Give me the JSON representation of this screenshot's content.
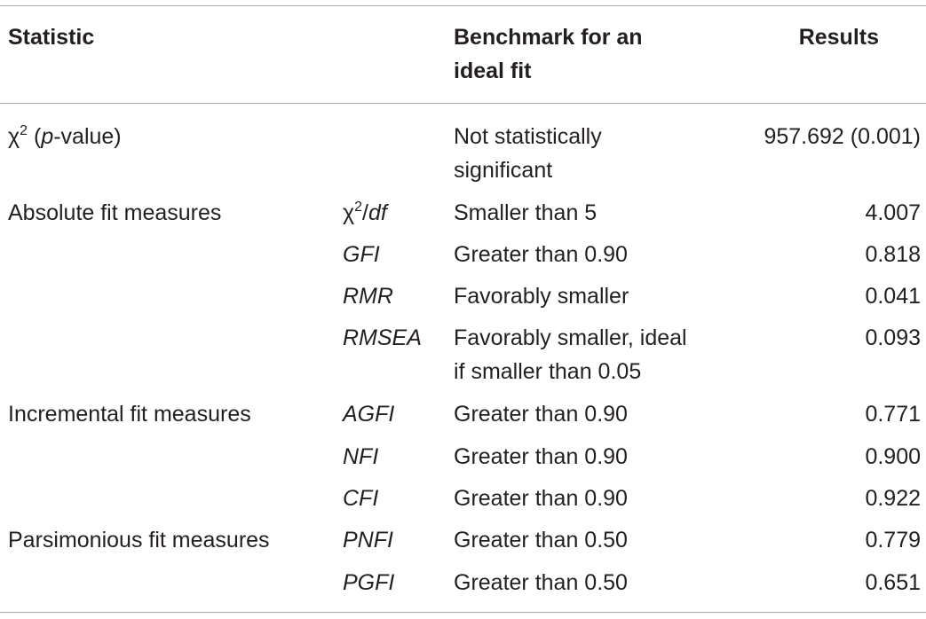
{
  "table": {
    "headers": {
      "statistic": "Statistic",
      "benchmark_line1": "Benchmark for an",
      "benchmark_line2": "ideal fit",
      "results": "Results"
    },
    "chi_row": {
      "symbol": "χ",
      "sup": "2",
      "open": " (",
      "p": "p",
      "rest": "-value)",
      "benchmark_line1": "Not statistically",
      "benchmark_line2": "significant",
      "result": "957.692 (0.001)"
    },
    "groups": {
      "absolute": "Absolute fit measures",
      "incremental": "Incremental fit measures",
      "parsimonious": "Parsimonious fit measures"
    },
    "chidf": {
      "symbol": "χ",
      "sup": "2",
      "slash": "/",
      "df": "df",
      "benchmark": "Smaller than 5",
      "result": "4.007"
    },
    "rows": {
      "gfi": {
        "measure": "GFI",
        "benchmark": "Greater than 0.90",
        "result": "0.818"
      },
      "rmr": {
        "measure": "RMR",
        "benchmark": "Favorably smaller",
        "result": "0.041"
      },
      "rmsea": {
        "measure": "RMSEA",
        "benchmark_line1": "Favorably smaller, ideal",
        "benchmark_line2": "if smaller than 0.05",
        "result": "0.093"
      },
      "agfi": {
        "measure": "AGFI",
        "benchmark": "Greater than 0.90",
        "result": "0.771"
      },
      "nfi": {
        "measure": "NFI",
        "benchmark": "Greater than 0.90",
        "result": "0.900"
      },
      "cfi": {
        "measure": "CFI",
        "benchmark": "Greater than 0.90",
        "result": "0.922"
      },
      "pnfi": {
        "measure": "PNFI",
        "benchmark": "Greater than 0.50",
        "result": "0.779"
      },
      "pgfi": {
        "measure": "PGFI",
        "benchmark": "Greater than 0.50",
        "result": "0.651"
      }
    }
  }
}
